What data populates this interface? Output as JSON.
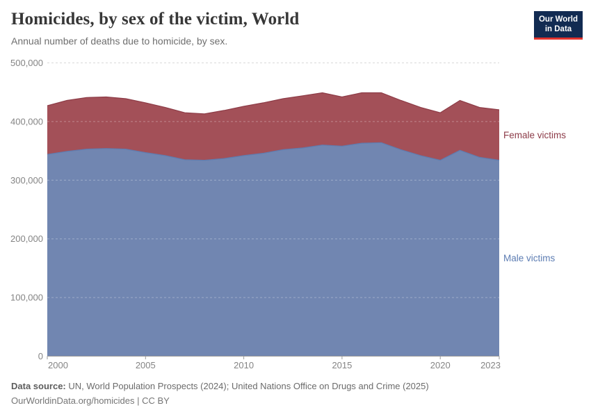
{
  "header": {
    "title": "Homicides, by sex of the victim, World",
    "subtitle": "Annual number of deaths due to homicide, by sex.",
    "logo": {
      "line1": "Our World",
      "line2": "in Data",
      "bg_color": "#122b52",
      "accent_color": "#e2332e"
    }
  },
  "chart_data": {
    "type": "area",
    "stacked": true,
    "title": "Homicides, by sex of the victim, World",
    "x": [
      2000,
      2001,
      2002,
      2003,
      2004,
      2005,
      2006,
      2007,
      2008,
      2009,
      2010,
      2011,
      2012,
      2013,
      2014,
      2015,
      2016,
      2017,
      2018,
      2019,
      2020,
      2021,
      2022,
      2023
    ],
    "series": [
      {
        "name": "Male victims",
        "fill_color": "#7186B1",
        "line_color": "#5F7CB0",
        "label_color": "#5D7DB3",
        "values": [
          344000,
          349000,
          353000,
          354000,
          353000,
          347000,
          342000,
          335000,
          334000,
          337000,
          342000,
          346000,
          352000,
          355000,
          360000,
          358000,
          363000,
          364000,
          352000,
          342000,
          334000,
          351000,
          339000,
          334000
        ]
      },
      {
        "name": "Female victims",
        "fill_color": "#A35058",
        "line_color": "#8D3C47",
        "label_color": "#8D3C49",
        "values": [
          83000,
          87000,
          88000,
          88000,
          86000,
          85000,
          82000,
          80000,
          79000,
          82000,
          84000,
          86000,
          87000,
          89000,
          89000,
          84000,
          86000,
          85000,
          84000,
          82000,
          81000,
          85000,
          85000,
          86000
        ]
      }
    ],
    "ylim": [
      0,
      500000
    ],
    "yticks": {
      "values": [
        0,
        100000,
        200000,
        300000,
        400000,
        500000
      ],
      "labels": [
        "0",
        "100,000",
        "200,000",
        "300,000",
        "400,000",
        "500,000"
      ]
    },
    "xticks": {
      "values": [
        2000,
        2005,
        2010,
        2015,
        2020,
        2023
      ],
      "labels": [
        "2000",
        "2005",
        "2010",
        "2015",
        "2020",
        "2023"
      ]
    },
    "grid": "horizontal-dashed",
    "legend_position": "inline-right"
  },
  "footer": {
    "source_label": "Data source:",
    "source_text": "UN, World Population Prospects (2024); United Nations Office on Drugs and Crime (2025)",
    "citation": "OurWorldinData.org/homicides | CC BY"
  }
}
